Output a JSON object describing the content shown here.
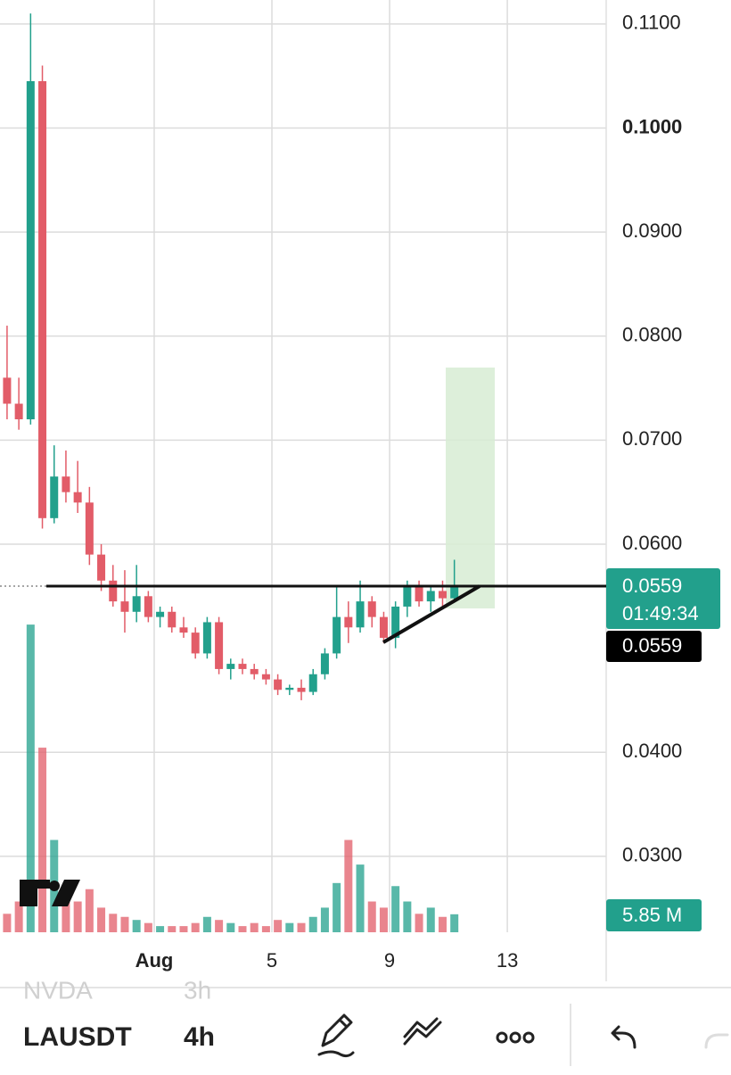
{
  "app": {
    "symbol": "LAUSDT",
    "interval": "4h",
    "ghost_symbol": "NVDA",
    "ghost_interval": "3h"
  },
  "chart_data": {
    "type": "candlestick",
    "x": [
      -4.0,
      -3.6,
      -3.2,
      -2.8,
      -2.4,
      -2.0,
      -1.6,
      -1.2,
      -0.8,
      -0.4,
      0.0,
      0.4,
      0.8,
      1.2,
      1.6,
      2.0,
      2.4,
      2.8,
      3.2,
      3.6,
      4.0,
      4.4,
      4.8,
      5.2,
      5.6,
      6.0,
      6.4,
      6.8,
      7.2,
      7.6,
      8.0,
      8.4,
      8.8,
      9.2,
      9.6,
      10.0,
      10.4,
      10.8,
      11.2
    ],
    "open": [
      0.076,
      0.0735,
      0.072,
      0.1045,
      0.0625,
      0.0665,
      0.065,
      0.064,
      0.059,
      0.0565,
      0.0545,
      0.0535,
      0.055,
      0.053,
      0.0535,
      0.052,
      0.0515,
      0.0495,
      0.0525,
      0.048,
      0.0485,
      0.048,
      0.0475,
      0.047,
      0.046,
      0.0462,
      0.0458,
      0.0475,
      0.0495,
      0.053,
      0.052,
      0.0545,
      0.053,
      0.051,
      0.054,
      0.056,
      0.0545,
      0.0555,
      0.0548
    ],
    "high": [
      0.081,
      0.076,
      0.111,
      0.106,
      0.0695,
      0.069,
      0.068,
      0.0655,
      0.06,
      0.058,
      0.0575,
      0.058,
      0.0555,
      0.054,
      0.054,
      0.053,
      0.052,
      0.053,
      0.053,
      0.049,
      0.049,
      0.0485,
      0.048,
      0.0475,
      0.0465,
      0.047,
      0.048,
      0.05,
      0.056,
      0.0545,
      0.0565,
      0.055,
      0.0535,
      0.0545,
      0.0565,
      0.0565,
      0.056,
      0.0565,
      0.0585
    ],
    "low": [
      0.072,
      0.071,
      0.0715,
      0.0615,
      0.062,
      0.064,
      0.063,
      0.058,
      0.0555,
      0.054,
      0.0515,
      0.0525,
      0.0525,
      0.052,
      0.0515,
      0.051,
      0.049,
      0.049,
      0.0475,
      0.047,
      0.0475,
      0.047,
      0.0465,
      0.0455,
      0.0455,
      0.045,
      0.0455,
      0.047,
      0.049,
      0.0505,
      0.0515,
      0.052,
      0.0505,
      0.05,
      0.053,
      0.054,
      0.0535,
      0.054,
      0.0545
    ],
    "close": [
      0.0735,
      0.072,
      0.1045,
      0.0625,
      0.0665,
      0.065,
      0.064,
      0.059,
      0.0565,
      0.0545,
      0.0535,
      0.055,
      0.053,
      0.0535,
      0.052,
      0.0515,
      0.0495,
      0.0525,
      0.048,
      0.0485,
      0.048,
      0.0475,
      0.047,
      0.046,
      0.0462,
      0.0458,
      0.0475,
      0.0495,
      0.053,
      0.052,
      0.0545,
      0.053,
      0.051,
      0.054,
      0.056,
      0.0545,
      0.0555,
      0.0548,
      0.0559
    ],
    "volume": [
      6,
      10,
      100,
      60,
      30,
      12,
      10,
      14,
      8,
      6,
      5,
      4,
      3,
      2,
      2,
      2,
      3,
      5,
      4,
      3,
      2,
      3,
      2,
      4,
      3,
      3,
      5,
      8,
      16,
      30,
      22,
      10,
      8,
      15,
      10,
      6,
      8,
      5,
      5.85
    ],
    "volume_label": "5.85 M",
    "volume_ylim": [
      0,
      303
    ],
    "up_color": "#22a08c",
    "down_color": "#e25c68",
    "xlim": [
      -4.24,
      16.36
    ],
    "xticks": [
      {
        "value": 1,
        "label": "Aug"
      },
      5,
      9,
      13
    ],
    "ylim": [
      0.0227,
      0.1123
    ],
    "yticks": [
      {
        "value": 0.03,
        "label": "0.0300"
      },
      {
        "value": 0.04,
        "label": "0.0400"
      },
      {
        "value": 0.06,
        "label": "0.0600"
      },
      {
        "value": 0.07,
        "label": "0.0700"
      },
      {
        "value": 0.08,
        "label": "0.0800"
      },
      {
        "value": 0.09,
        "label": "0.0900"
      },
      {
        "value": 0.1,
        "label": "0.1000"
      },
      {
        "value": 0.11,
        "label": "0.1100"
      }
    ],
    "grid": true,
    "last_price": 0.0559,
    "countdown": "01:49:34",
    "crosshair_price": 0.0559
  }
}
